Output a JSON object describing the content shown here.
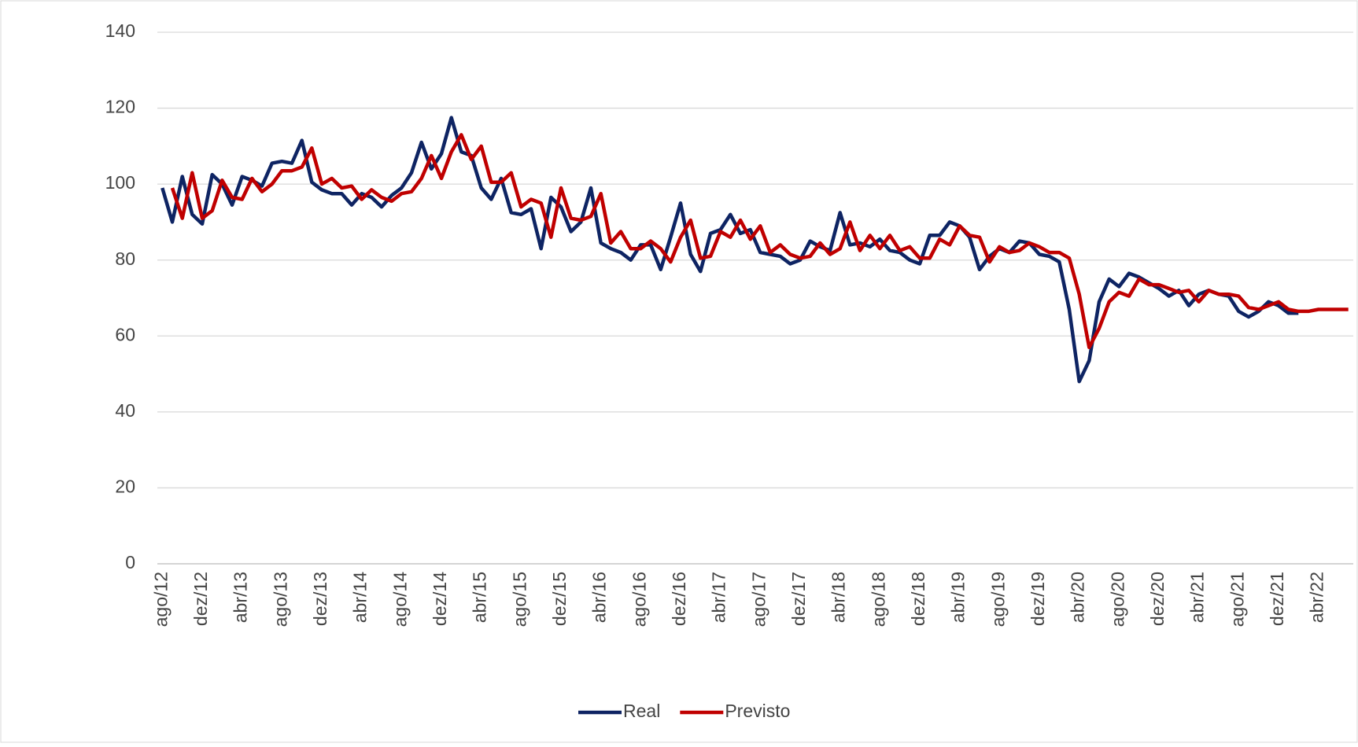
{
  "chart_data": {
    "type": "line",
    "categories": [
      "ago/12",
      null,
      null,
      null,
      "dez/12",
      null,
      null,
      null,
      "abr/13",
      null,
      null,
      null,
      "ago/13",
      null,
      null,
      null,
      "dez/13",
      null,
      null,
      null,
      "abr/14",
      null,
      null,
      null,
      "ago/14",
      null,
      null,
      null,
      "dez/14",
      null,
      null,
      null,
      "abr/15",
      null,
      null,
      null,
      "ago/15",
      null,
      null,
      null,
      "dez/15",
      null,
      null,
      null,
      "abr/16",
      null,
      null,
      null,
      "ago/16",
      null,
      null,
      null,
      "dez/16",
      null,
      null,
      null,
      "abr/17",
      null,
      null,
      null,
      "ago/17",
      null,
      null,
      null,
      "dez/17",
      null,
      null,
      null,
      "abr/18",
      null,
      null,
      null,
      "ago/18",
      null,
      null,
      null,
      "dez/18",
      null,
      null,
      null,
      "abr/19",
      null,
      null,
      null,
      "ago/19",
      null,
      null,
      null,
      "dez/19",
      null,
      null,
      null,
      "abr/20",
      null,
      null,
      null,
      "ago/20",
      null,
      null,
      null,
      "dez/20",
      null,
      null,
      null,
      "abr/21",
      null,
      null,
      null,
      "ago/21",
      null,
      null,
      null,
      "dez/21",
      null,
      null,
      null,
      "abr/22",
      null,
      null,
      null
    ],
    "series": [
      {
        "name": "Real",
        "color": "#0e2463",
        "values": [
          99,
          90,
          102,
          92,
          89.5,
          102.5,
          100,
          94.5,
          102,
          101,
          99.5,
          105.5,
          106,
          105.5,
          111.5,
          100.5,
          98.5,
          97.5,
          97.5,
          94.5,
          97.5,
          96.5,
          94,
          97,
          99,
          103,
          111,
          104,
          108,
          117.5,
          108.5,
          107.5,
          99,
          96,
          101.5,
          92.5,
          92,
          93.5,
          83,
          96.5,
          94,
          87.5,
          90,
          99,
          84.5,
          83,
          82,
          80,
          84,
          84,
          77.5,
          86,
          95,
          81.5,
          77,
          87,
          88,
          92,
          87,
          88,
          82,
          81.5,
          81,
          79,
          80,
          85,
          83.5,
          82.5,
          92.5,
          84,
          84.5,
          83.5,
          85.5,
          82.5,
          82,
          80,
          79,
          86.5,
          86.5,
          90,
          89,
          86,
          77.5,
          81,
          83,
          82,
          85,
          84.5,
          81.5,
          81,
          79.5,
          67,
          48,
          53.5,
          69,
          75,
          73,
          76.5,
          75.5,
          74,
          72.5,
          70.5,
          72,
          68,
          71,
          72,
          71,
          70.5,
          66.5,
          65,
          66.5,
          69,
          68,
          66,
          66,
          null,
          null,
          null,
          null,
          null
        ]
      },
      {
        "name": "Previsto",
        "color": "#c00000",
        "values": [
          null,
          99,
          91,
          103,
          91,
          93,
          101,
          96.5,
          96,
          101.5,
          98,
          100,
          103.5,
          103.5,
          104.5,
          109.5,
          100,
          101.5,
          99,
          99.5,
          96,
          98.5,
          96.5,
          95.5,
          97.5,
          98,
          101.5,
          107.5,
          101.5,
          108.5,
          113,
          106.5,
          110,
          100.5,
          100.5,
          103,
          94,
          96,
          95,
          86,
          99,
          91,
          90.5,
          91.5,
          97.5,
          84.5,
          87.5,
          83,
          83,
          85,
          83,
          79.5,
          86,
          90.5,
          80.5,
          81,
          87.5,
          86,
          90.5,
          85.5,
          89,
          82,
          84,
          81.5,
          80.5,
          81,
          84.5,
          81.5,
          83,
          90,
          82.5,
          86.5,
          83,
          86.5,
          82.5,
          83.5,
          80.5,
          80.5,
          85.5,
          84,
          89,
          86.5,
          86,
          79.5,
          83.5,
          82,
          82.5,
          84.5,
          83.5,
          82,
          82,
          80.5,
          71,
          57,
          62,
          69,
          71.5,
          70.5,
          75,
          73.5,
          73.5,
          72.5,
          71.5,
          72,
          69,
          72,
          71,
          71,
          70.5,
          67.5,
          67,
          68,
          69,
          67,
          66.5,
          66.5,
          67,
          67,
          67,
          67
        ]
      }
    ],
    "ylim": [
      0,
      140
    ],
    "yticks": [
      0,
      20,
      40,
      60,
      80,
      100,
      120,
      140
    ],
    "grid": true,
    "legend": "bottom"
  }
}
